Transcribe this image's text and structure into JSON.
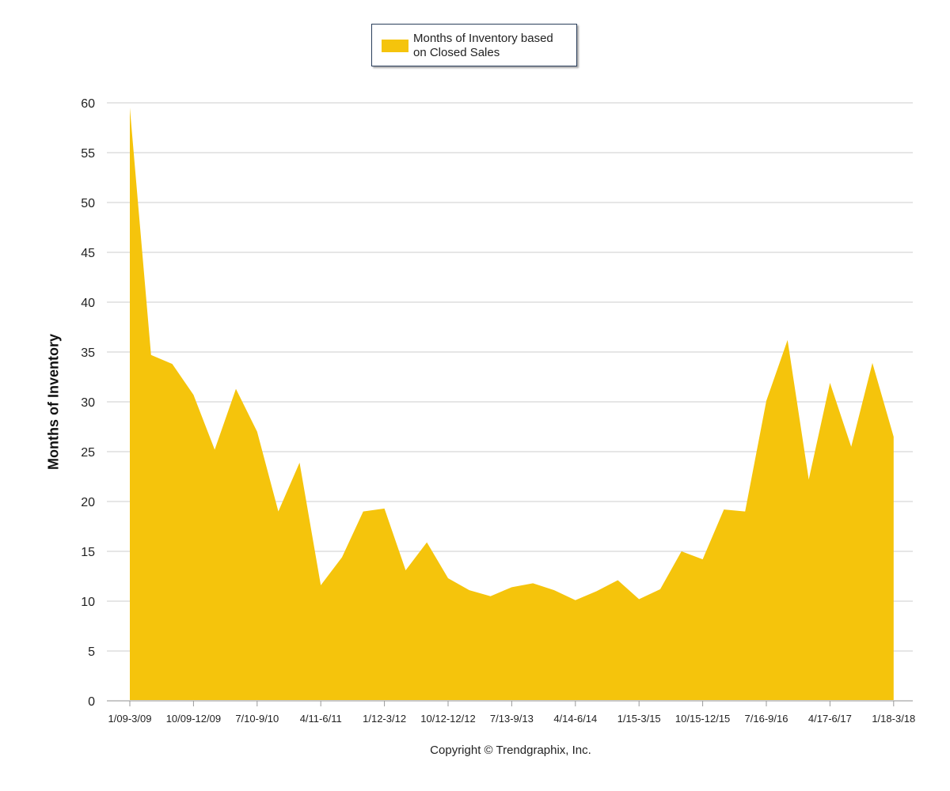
{
  "colors": {
    "area": "#F5C40C",
    "grid": "#cccccc",
    "axis": "#999999",
    "text": "#222222"
  },
  "legend": {
    "label_line1": "Months of Inventory based",
    "label_line2": "on Closed Sales"
  },
  "copyright": "Copyright © Trendgraphix, Inc.",
  "chart_data": {
    "type": "area",
    "title": "",
    "xlabel": "",
    "ylabel": "Months of Inventory",
    "ylim": [
      0,
      60
    ],
    "yticks": [
      0,
      5,
      10,
      15,
      20,
      25,
      30,
      35,
      40,
      45,
      50,
      55,
      60
    ],
    "grid": true,
    "legend_position": "top-center",
    "x_tick_labels": [
      "1/09-3/09",
      "10/09-12/09",
      "7/10-9/10",
      "4/11-6/11",
      "1/12-3/12",
      "10/12-12/12",
      "7/13-9/13",
      "4/14-6/14",
      "1/15-3/15",
      "10/15-12/15",
      "7/16-9/16",
      "4/17-6/17",
      "1/18-3/18"
    ],
    "series": [
      {
        "name": "Months of Inventory based on Closed Sales",
        "values": [
          59.5,
          34.7,
          33.8,
          30.7,
          25.2,
          31.3,
          27.0,
          19.0,
          23.9,
          11.6,
          14.4,
          19.0,
          19.3,
          13.1,
          15.9,
          12.3,
          11.1,
          10.5,
          11.4,
          11.8,
          11.1,
          10.1,
          11.0,
          12.1,
          10.2,
          11.2,
          15.0,
          14.2,
          19.2,
          19.0,
          30.1,
          36.2,
          22.2,
          31.9,
          25.5,
          33.9,
          26.5
        ]
      }
    ]
  }
}
